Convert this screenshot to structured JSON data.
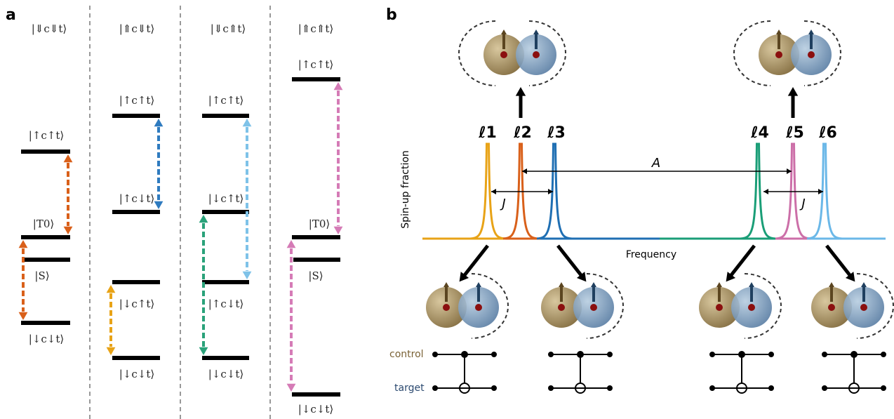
{
  "panel_a": {
    "label": "a",
    "columns": [
      {
        "header": "|⇓c⇓t⟩",
        "levels": [
          "|↑c↑t⟩",
          "|T0⟩",
          "|S⟩",
          "|↓c↓t⟩"
        ]
      },
      {
        "header": "|⇑c⇓t⟩",
        "levels": [
          "|↑c↑t⟩",
          "|↑c↓t⟩",
          "|↓c↑t⟩",
          "|↓c↓t⟩"
        ]
      },
      {
        "header": "|⇓c⇑t⟩",
        "levels": [
          "|↑c↑t⟩",
          "|↓c↑t⟩",
          "|↑c↓t⟩",
          "|↓c↓t⟩"
        ]
      },
      {
        "header": "|⇑c⇑t⟩",
        "levels": [
          "|↑c↑t⟩",
          "|T0⟩",
          "|S⟩",
          "|↓c↓t⟩"
        ]
      }
    ]
  },
  "panel_b": {
    "label": "b",
    "peaks": [
      "ℓ1",
      "ℓ2",
      "ℓ3",
      "ℓ4",
      "ℓ5",
      "ℓ6"
    ],
    "coupling_A": "A",
    "coupling_J": [
      "J",
      "J"
    ],
    "y_axis": "Spin-up fraction",
    "x_axis": "Frequency",
    "circuit": {
      "control": "control",
      "target": "target"
    }
  }
}
